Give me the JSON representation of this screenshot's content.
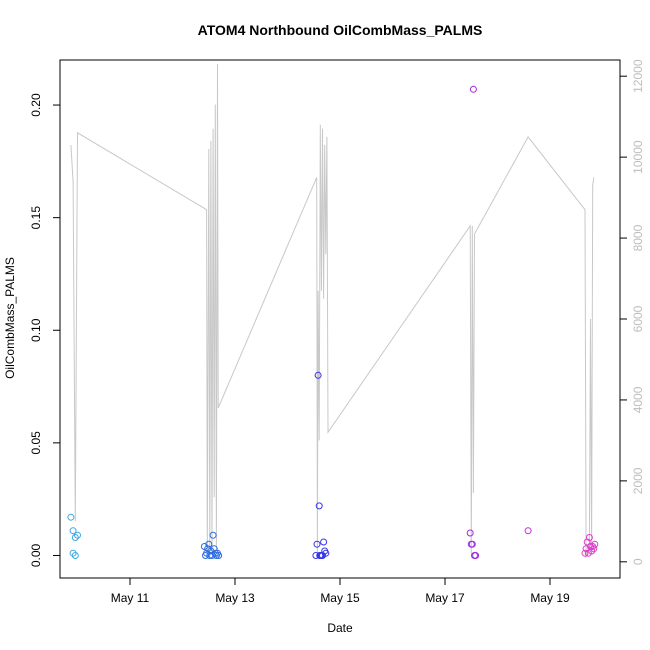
{
  "chart_data": {
    "type": "scatter",
    "title": "ATOM4 Northbound OilCombMass_PALMS",
    "xlabel": "Date",
    "ylabel": "OilCombMass_PALMS",
    "x_axis": {
      "type": "date",
      "range": [
        "2018-05-09 16:00",
        "2018-05-20 08:00"
      ],
      "tick_labels": [
        "May 11",
        "May 13",
        "May 15",
        "May 17",
        "May 19"
      ],
      "tick_values": [
        "2018-05-11",
        "2018-05-13",
        "2018-05-15",
        "2018-05-17",
        "2018-05-19"
      ]
    },
    "y_left": {
      "range": [
        -0.01,
        0.22
      ],
      "ticks": [
        0.0,
        0.05,
        0.1,
        0.15,
        0.2
      ],
      "tick_labels": [
        "0.00",
        "0.05",
        "0.10",
        "0.15",
        "0.20"
      ]
    },
    "y_right": {
      "range": [
        -400,
        12400
      ],
      "ticks": [
        0,
        2000,
        4000,
        6000,
        8000,
        10000,
        12000
      ],
      "tick_labels": [
        "0",
        "2000",
        "4000",
        "6000",
        "8000",
        "10000",
        "12000"
      ],
      "color": "#bdbdbd"
    },
    "grid": false,
    "altitude_series": {
      "color": "#c8c8c8",
      "points": [
        [
          "2018-05-09 21:00",
          10300
        ],
        [
          "2018-05-09 22:00",
          9400
        ],
        [
          "2018-05-09 23:00",
          1000
        ],
        [
          "2018-05-10 00:00",
          10600
        ],
        [
          "2018-05-12 11:00",
          8700
        ],
        [
          "2018-05-12 11:20",
          100
        ],
        [
          "2018-05-12 12:00",
          10200
        ],
        [
          "2018-05-12 12:30",
          100
        ],
        [
          "2018-05-12 13:00",
          10400
        ],
        [
          "2018-05-12 13:30",
          200
        ],
        [
          "2018-05-12 14:00",
          10700
        ],
        [
          "2018-05-12 14:30",
          1600
        ],
        [
          "2018-05-12 15:00",
          11300
        ],
        [
          "2018-05-12 15:30",
          300
        ],
        [
          "2018-05-12 16:00",
          12300
        ],
        [
          "2018-05-12 16:20",
          3800
        ],
        [
          "2018-05-14 13:20",
          9500
        ],
        [
          "2018-05-14 13:40",
          200
        ],
        [
          "2018-05-14 14:00",
          6700
        ],
        [
          "2018-05-14 14:30",
          3000
        ],
        [
          "2018-05-14 15:00",
          10800
        ],
        [
          "2018-05-14 15:30",
          6700
        ],
        [
          "2018-05-14 16:00",
          10700
        ],
        [
          "2018-05-14 16:30",
          6500
        ],
        [
          "2018-05-14 17:00",
          10300
        ],
        [
          "2018-05-14 17:30",
          7600
        ],
        [
          "2018-05-14 18:00",
          10500
        ],
        [
          "2018-05-14 18:30",
          3200
        ],
        [
          "2018-05-17 11:30",
          8300
        ],
        [
          "2018-05-17 12:00",
          200
        ],
        [
          "2018-05-17 12:30",
          8300
        ],
        [
          "2018-05-17 13:00",
          1700
        ],
        [
          "2018-05-17 13:30",
          8100
        ],
        [
          "2018-05-18 14:00",
          10500
        ],
        [
          "2018-05-19 16:00",
          8700
        ],
        [
          "2018-05-19 16:30",
          100
        ],
        [
          "2018-05-19 18:00",
          500
        ],
        [
          "2018-05-19 18:30",
          6000
        ],
        [
          "2018-05-19 19:00",
          200
        ],
        [
          "2018-05-19 19:30",
          9300
        ],
        [
          "2018-05-19 20:00",
          9500
        ]
      ]
    },
    "series": [
      {
        "points": [
          [
            "2018-05-09 21:00",
            0.017,
            "#3fa9e0"
          ],
          [
            "2018-05-09 22:00",
            0.011,
            "#3fa9e0"
          ],
          [
            "2018-05-09 23:00",
            0.008,
            "#3fa9e0"
          ],
          [
            "2018-05-10 00:00",
            0.009,
            "#3fa9e0"
          ],
          [
            "2018-05-09 22:00",
            0.001,
            "#3fa9e0"
          ],
          [
            "2018-05-09 23:00",
            0.0,
            "#3fa9e0"
          ],
          [
            "2018-05-12 10:00",
            0.004,
            "#2b6be0"
          ],
          [
            "2018-05-12 10:30",
            0.0,
            "#2b6be0"
          ],
          [
            "2018-05-12 11:00",
            0.001,
            "#2b6be0"
          ],
          [
            "2018-05-12 11:30",
            0.003,
            "#2b6be0"
          ],
          [
            "2018-05-12 12:00",
            0.005,
            "#2b6be0"
          ],
          [
            "2018-05-12 12:30",
            0.0,
            "#2b6be0"
          ],
          [
            "2018-05-12 13:00",
            0.002,
            "#2b6be0"
          ],
          [
            "2018-05-12 13:30",
            0.0,
            "#2b6be0"
          ],
          [
            "2018-05-12 14:00",
            0.009,
            "#2b6be0"
          ],
          [
            "2018-05-12 14:30",
            0.003,
            "#2b6be0"
          ],
          [
            "2018-05-12 15:00",
            0.001,
            "#2b6be0"
          ],
          [
            "2018-05-12 15:30",
            0.0,
            "#2b6be0"
          ],
          [
            "2018-05-12 16:00",
            0.001,
            "#2b6be0"
          ],
          [
            "2018-05-12 16:30",
            0.0,
            "#2b6be0"
          ],
          [
            "2018-05-14 13:00",
            0.0,
            "#3535e8"
          ],
          [
            "2018-05-14 13:30",
            0.005,
            "#3535e8"
          ],
          [
            "2018-05-14 14:00",
            0.08,
            "#3535e8"
          ],
          [
            "2018-05-14 14:30",
            0.022,
            "#3535e8"
          ],
          [
            "2018-05-14 15:00",
            0.0,
            "#3535e8"
          ],
          [
            "2018-05-14 15:30",
            0.0,
            "#3535e8"
          ],
          [
            "2018-05-14 16:00",
            0.0,
            "#3535e8"
          ],
          [
            "2018-05-14 16:30",
            0.006,
            "#3535e8"
          ],
          [
            "2018-05-14 17:00",
            0.002,
            "#3535e8"
          ],
          [
            "2018-05-14 17:30",
            0.001,
            "#3535e8"
          ],
          [
            "2018-05-14 14:45",
            0.0,
            "#3535e8"
          ],
          [
            "2018-05-14 15:15",
            0.0,
            "#3535e8"
          ],
          [
            "2018-05-17 11:30",
            0.01,
            "#9b2de0"
          ],
          [
            "2018-05-17 12:00",
            0.005,
            "#9b2de0"
          ],
          [
            "2018-05-17 12:30",
            0.005,
            "#9b2de0"
          ],
          [
            "2018-05-17 13:00",
            0.207,
            "#9b2de0"
          ],
          [
            "2018-05-17 13:30",
            0.0,
            "#9b2de0"
          ],
          [
            "2018-05-17 14:00",
            0.0,
            "#9b2de0"
          ],
          [
            "2018-05-18 14:00",
            0.011,
            "#c42ed4"
          ],
          [
            "2018-05-19 16:00",
            0.001,
            "#dc3fc8"
          ],
          [
            "2018-05-19 16:30",
            0.003,
            "#dc3fc8"
          ],
          [
            "2018-05-19 17:00",
            0.006,
            "#dc3fc8"
          ],
          [
            "2018-05-19 17:30",
            0.001,
            "#dc3fc8"
          ],
          [
            "2018-05-19 18:00",
            0.008,
            "#dc3fc8"
          ],
          [
            "2018-05-19 18:30",
            0.004,
            "#dc3fc8"
          ],
          [
            "2018-05-19 19:00",
            0.002,
            "#dc3fc8"
          ],
          [
            "2018-05-19 19:30",
            0.004,
            "#dc3fc8"
          ],
          [
            "2018-05-19 20:00",
            0.003,
            "#dc3fc8"
          ],
          [
            "2018-05-19 20:30",
            0.005,
            "#dc3fc8"
          ]
        ]
      }
    ]
  }
}
